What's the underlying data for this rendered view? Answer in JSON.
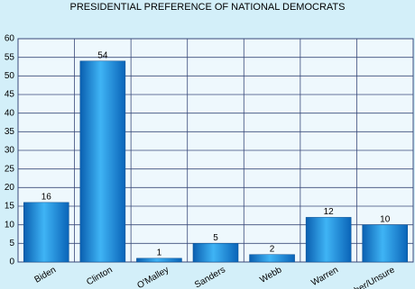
{
  "chart_data": {
    "type": "bar",
    "title": "PRESIDENTIAL PREFERENCE OF NATIONAL DEMOCRATS",
    "categories": [
      "Biden",
      "Clinton",
      "O'Malley",
      "Sanders",
      "Webb",
      "Warren",
      "Other/Unsure"
    ],
    "values": [
      16,
      54,
      1,
      5,
      2,
      12,
      10
    ],
    "color": "#1a8fe0",
    "ylim": [
      0,
      60
    ],
    "yticks": [
      0,
      5,
      10,
      15,
      20,
      25,
      30,
      35,
      40,
      45,
      50,
      55,
      60
    ],
    "grid": true
  }
}
